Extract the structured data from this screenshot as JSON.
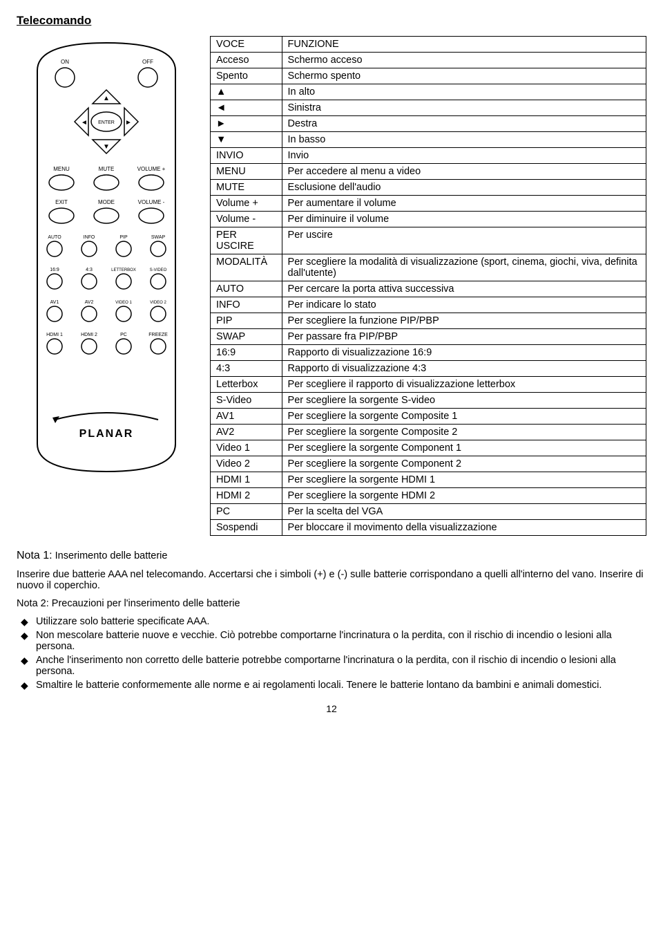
{
  "title": "Telecomando",
  "table": {
    "header": {
      "col1": "VOCE",
      "col2": "FUNZIONE"
    },
    "rows": [
      {
        "k": "Acceso",
        "v": "Schermo acceso"
      },
      {
        "k": "Spento",
        "v": "Schermo spento"
      },
      {
        "k": "▲",
        "v": "In alto"
      },
      {
        "k": "◄",
        "v": "Sinistra"
      },
      {
        "k": "►",
        "v": "Destra"
      },
      {
        "k": "▼",
        "v": "In basso"
      },
      {
        "k": "INVIO",
        "v": "Invio"
      },
      {
        "k": "MENU",
        "v": "Per accedere al menu a video"
      },
      {
        "k": "MUTE",
        "v": "Esclusione dell'audio"
      },
      {
        "k": "Volume +",
        "v": "Per aumentare il volume"
      },
      {
        "k": "Volume -",
        "v": "Per diminuire il volume"
      },
      {
        "k": "PER USCIRE",
        "v": "Per uscire"
      },
      {
        "k": "MODALITÀ",
        "v": "Per scegliere la modalità di visualizzazione (sport, cinema, giochi, viva, definita dall'utente)"
      },
      {
        "k": "AUTO",
        "v": "Per cercare la porta attiva successiva"
      },
      {
        "k": "INFO",
        "v": "Per indicare lo stato"
      },
      {
        "k": "PIP",
        "v": "Per scegliere la funzione PIP/PBP"
      },
      {
        "k": "SWAP",
        "v": "Per passare fra PIP/PBP"
      },
      {
        "k": "16:9",
        "v": "Rapporto di visualizzazione 16:9"
      },
      {
        "k": "4:3",
        "v": "Rapporto di visualizzazione 4:3"
      },
      {
        "k": "Letterbox",
        "v": "Per scegliere il rapporto di visualizzazione letterbox"
      },
      {
        "k": "S-Video",
        "v": "Per scegliere la sorgente S-video"
      },
      {
        "k": "AV1",
        "v": "Per scegliere la sorgente Composite 1"
      },
      {
        "k": "AV2",
        "v": "Per scegliere la sorgente Composite 2"
      },
      {
        "k": "Video 1",
        "v": "Per scegliere la sorgente Component 1"
      },
      {
        "k": "Video 2",
        "v": "Per scegliere la sorgente Component 2"
      },
      {
        "k": "HDMI 1",
        "v": "Per scegliere la sorgente HDMI 1"
      },
      {
        "k": "HDMI 2",
        "v": "Per scegliere la sorgente HDMI 2"
      },
      {
        "k": "PC",
        "v": "Per la scelta del VGA"
      },
      {
        "k": "Sospendi",
        "v": "Per bloccare il movimento della visualizzazione"
      }
    ]
  },
  "remote": {
    "on": "ON",
    "off": "OFF",
    "enter": "ENTER",
    "menu": "MENU",
    "mute": "MUTE",
    "volp": "VOLUME +",
    "exit": "EXIT",
    "mode": "MODE",
    "volm": "VOLUME -",
    "auto": "AUTO",
    "info": "INFO",
    "pip": "PIP",
    "swap": "SWAP",
    "r169": "16:9",
    "r43": "4:3",
    "letterbox": "LETTERBOX",
    "svideo": "S-VIDEO",
    "av1": "AV1",
    "av2": "AV2",
    "video1": "VIDEO 1",
    "video2": "VIDEO 2",
    "hdmi1": "HDMI 1",
    "hdmi2": "HDMI 2",
    "pc": "PC",
    "freeze": "FREEZE",
    "brand": "PLANAR"
  },
  "notes": {
    "n1_title": "Nota 1:",
    "n1_rest": " Inserimento delle batterie",
    "n1_body": "Inserire due batterie AAA nel telecomando. Accertarsi che i simboli (+) e (-) sulle batterie corrispondano a quelli all'interno del vano. Inserire di nuovo il coperchio.",
    "n2_title": "Nota 2: Precauzioni per l'inserimento delle batterie",
    "bullets": [
      "Utilizzare solo batterie specificate AAA.",
      "Non mescolare batterie nuove e vecchie. Ciò potrebbe comportarne l'incrinatura o la perdita, con il rischio di incendio o lesioni alla persona.",
      "Anche l'inserimento non corretto delle batterie potrebbe comportarne l'incrinatura o la perdita, con il rischio di incendio o lesioni alla persona.",
      "Smaltire le batterie conformemente alle norme e ai regolamenti locali. Tenere le batterie lontano da bambini e animali domestici."
    ]
  },
  "page_number": "12",
  "style": {
    "font_family": "Arial",
    "body_fontsize_pt": 11,
    "title_fontsize_pt": 13,
    "border_color": "#000000",
    "background": "#ffffff",
    "remote_stroke": "#000000",
    "remote_fill": "#ffffff"
  }
}
